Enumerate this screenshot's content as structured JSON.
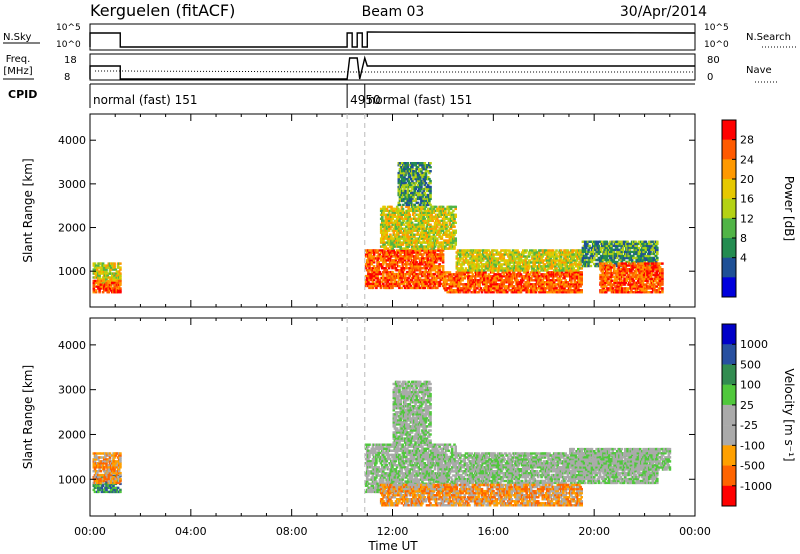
{
  "header": {
    "radar": "Kerguelen (fitACF)",
    "beam": "Beam 03",
    "date": "30/Apr/2014"
  },
  "params": {
    "nsky_label": "N.Sky",
    "nsky_ticks": [
      "10^5",
      "10^0"
    ],
    "nsearch_label": "N.Search",
    "nsearch_ticks": [
      "10^5",
      "10^0"
    ],
    "freq_label_1": "Freq.",
    "freq_label_2": "[MHz]",
    "freq_ticks": [
      "18",
      "8"
    ],
    "nave_label": "Nave",
    "nave_ticks": [
      "80",
      "0"
    ],
    "cpid_label": "CPID",
    "cpid_segments": [
      {
        "label": "normal (fast) 151",
        "start_hour": 0
      },
      {
        "label": "4950",
        "start_hour": 10.2
      },
      {
        "label": "normal (fast) 151",
        "start_hour": 10.9
      }
    ]
  },
  "chart_data": [
    {
      "type": "heatmap",
      "name": "power",
      "ylabel": "Slant Range [km]",
      "xlim": [
        0,
        24
      ],
      "ylim": [
        180,
        4600
      ],
      "yticks": [
        1000,
        2000,
        3000,
        4000
      ],
      "colorbar": {
        "label": "Power [dB]",
        "ticks": [
          "28",
          "24",
          "20",
          "16",
          "12",
          "8",
          "4"
        ],
        "colors": [
          "#ff0000",
          "#ff5a00",
          "#ff9900",
          "#e6c800",
          "#b4d214",
          "#50b446",
          "#238c50",
          "#1e5096",
          "#0000dc"
        ]
      },
      "blocks": [
        {
          "t0": 0.1,
          "t1": 1.2,
          "r0": 700,
          "r1": 1200,
          "level": "mid"
        },
        {
          "t0": 0.1,
          "t1": 1.2,
          "r0": 500,
          "r1": 800,
          "level": "high"
        },
        {
          "t0": 10.9,
          "t1": 14.0,
          "r0": 600,
          "r1": 1500,
          "level": "high"
        },
        {
          "t0": 11.5,
          "t1": 14.5,
          "r0": 1500,
          "r1": 2500,
          "level": "mid"
        },
        {
          "t0": 12.2,
          "t1": 13.5,
          "r0": 2500,
          "r1": 3500,
          "level": "low"
        },
        {
          "t0": 14.0,
          "t1": 19.5,
          "r0": 500,
          "r1": 1000,
          "level": "high"
        },
        {
          "t0": 14.5,
          "t1": 19.5,
          "r0": 1000,
          "r1": 1500,
          "level": "mid"
        },
        {
          "t0": 19.5,
          "t1": 22.5,
          "r0": 1100,
          "r1": 1700,
          "level": "low"
        },
        {
          "t0": 20.2,
          "t1": 22.7,
          "r0": 500,
          "r1": 1200,
          "level": "high"
        }
      ]
    },
    {
      "type": "heatmap",
      "name": "velocity",
      "ylabel": "Slant Range [km]",
      "xlabel": "Time UT",
      "xlim": [
        0,
        24
      ],
      "ylim": [
        180,
        4600
      ],
      "yticks": [
        1000,
        2000,
        3000,
        4000
      ],
      "xticks": [
        "00:00",
        "04:00",
        "08:00",
        "12:00",
        "16:00",
        "20:00",
        "00:00"
      ],
      "colorbar": {
        "label": "Velocity [m s⁻¹]",
        "ticks": [
          "1000",
          "500",
          "100",
          "25",
          "-25",
          "-100",
          "-500",
          "-1000"
        ],
        "colors": [
          "#0000c8",
          "#2850a0",
          "#328c50",
          "#50c83c",
          "#aaaaaa",
          "#aaaaaa",
          "#ffa000",
          "#ff6400",
          "#ff0000"
        ]
      },
      "blocks": [
        {
          "t0": 0.1,
          "t1": 1.2,
          "r0": 700,
          "r1": 1100,
          "level": "pos"
        },
        {
          "t0": 0.1,
          "t1": 1.2,
          "r0": 900,
          "r1": 1600,
          "level": "neg"
        },
        {
          "t0": 10.9,
          "t1": 14.5,
          "r0": 700,
          "r1": 1800,
          "level": "zero"
        },
        {
          "t0": 12.0,
          "t1": 13.5,
          "r0": 1800,
          "r1": 3200,
          "level": "zero"
        },
        {
          "t0": 14.5,
          "t1": 22.5,
          "r0": 900,
          "r1": 1600,
          "level": "zero"
        },
        {
          "t0": 11.5,
          "t1": 19.5,
          "r0": 400,
          "r1": 900,
          "level": "neg"
        },
        {
          "t0": 19.0,
          "t1": 23.0,
          "r0": 1200,
          "r1": 1700,
          "level": "zero"
        }
      ]
    }
  ]
}
